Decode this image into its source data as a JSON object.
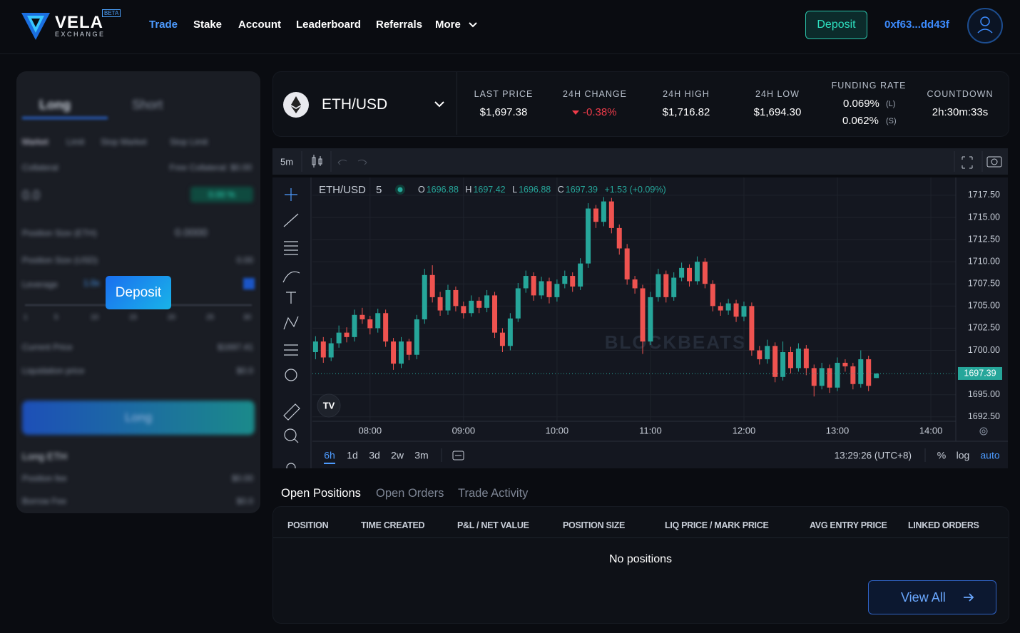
{
  "header": {
    "logo": "VELA",
    "logo_sub": "EXCHANGE",
    "badge": "BETA",
    "nav": [
      "Trade",
      "Stake",
      "Account",
      "Leaderboard",
      "Referrals",
      "More"
    ],
    "deposit": "Deposit",
    "wallet": "0xf63...dd43f"
  },
  "order_panel": {
    "tabs": [
      "Long",
      "Short"
    ],
    "order_types": [
      "Market",
      "Limit",
      "Stop Market",
      "Stop Limit"
    ],
    "collateral": "Collateral",
    "free_collateral": "Free Collateral: $0.00",
    "amount": "0.0",
    "percent": "0.00 %",
    "size_eth": "Position Size (ETH)",
    "size_eth_value": "0.0000",
    "size_usd": "Position Size (USD)",
    "size_usd_value": "0.00",
    "leverage": "Leverage",
    "leverage_value": "1.0x",
    "leverage_marks": [
      "1",
      "5",
      "10",
      "15",
      "20",
      "25",
      "30"
    ],
    "current_price": "Current Price",
    "current_price_value": "$1697.41",
    "liq_price": "Liquidation price",
    "liq_price_value": "$0.0",
    "submit": "Long",
    "summary_title": "Long ETH",
    "position_fee": "Position fee",
    "position_fee_value": "$0.00",
    "borrow_fee": "Borrow Fee",
    "borrow_fee_value": "$0.0"
  },
  "deposit_popup": "Deposit",
  "market": {
    "pair": "ETH/USD",
    "stats": [
      {
        "label": "LAST PRICE",
        "value": "$1,697.38"
      },
      {
        "label": "24H CHANGE",
        "value": "-0.38%"
      },
      {
        "label": "24H HIGH",
        "value": "$1,716.82"
      },
      {
        "label": "24H LOW",
        "value": "$1,694.30"
      }
    ],
    "funding": {
      "label": "FUNDING RATE",
      "long": "0.069%",
      "long_tag": "(L)",
      "short": "0.062%",
      "short_tag": "(S)"
    },
    "countdown": {
      "label": "COUNTDOWN",
      "value": "2h:30m:33s"
    }
  },
  "chart_data": {
    "type": "candlestick",
    "toolbar_interval": "5m",
    "symbol": "ETH/USD",
    "interval": "5",
    "legend_labels": [
      "O",
      "H",
      "L",
      "C"
    ],
    "change": "+1.53 (+0.09%)",
    "watermark": "BLOCKBEATS",
    "up_color": "#26a69a",
    "down_color": "#ef5350",
    "grid": true,
    "x": [
      "07:25",
      "07:30",
      "07:35",
      "07:40",
      "07:45",
      "07:50",
      "07:55",
      "08:00",
      "08:05",
      "08:10",
      "08:15",
      "08:20",
      "08:25",
      "08:30",
      "08:35",
      "08:40",
      "08:45",
      "08:50",
      "08:55",
      "09:00",
      "09:05",
      "09:10",
      "09:15",
      "09:20",
      "09:25",
      "09:30",
      "09:35",
      "09:40",
      "09:45",
      "09:50",
      "09:55",
      "10:00",
      "10:05",
      "10:10",
      "10:15",
      "10:20",
      "10:25",
      "10:30",
      "10:35",
      "10:40",
      "10:45",
      "10:50",
      "10:55",
      "11:00",
      "11:05",
      "11:10",
      "11:15",
      "11:20",
      "11:25",
      "11:30",
      "11:35",
      "11:40",
      "11:45",
      "11:50",
      "11:55",
      "12:00",
      "12:05",
      "12:10",
      "12:15",
      "12:20",
      "12:25",
      "12:30",
      "12:35",
      "12:40",
      "12:45",
      "12:50",
      "12:55",
      "13:00",
      "13:05",
      "13:10",
      "13:15",
      "13:20",
      "13:25"
    ],
    "open": [
      1699.8,
      1701.0,
      1699.2,
      1700.8,
      1702.0,
      1701.5,
      1704.0,
      1703.5,
      1702.5,
      1704.2,
      1701.0,
      1698.5,
      1701.0,
      1699.5,
      1703.5,
      1708.5,
      1706.0,
      1704.5,
      1706.8,
      1705.0,
      1704.2,
      1705.6,
      1704.8,
      1706.2,
      1702.0,
      1700.5,
      1703.6,
      1707.0,
      1708.4,
      1706.2,
      1707.8,
      1706.0,
      1707.5,
      1708.4,
      1707.2,
      1709.8,
      1716.0,
      1714.5,
      1716.8,
      1713.8,
      1711.5,
      1708.0,
      1707.0,
      1701.0,
      1706.0,
      1708.6,
      1706.0,
      1708.2,
      1709.3,
      1707.8,
      1710.0,
      1707.5,
      1705.0,
      1704.5,
      1705.3,
      1703.8,
      1705.0,
      1700.0,
      1699.0,
      1700.5,
      1697.0,
      1699.8,
      1698.0,
      1700.2,
      1698.0,
      1696.0,
      1698.0,
      1695.8,
      1698.6,
      1698.2,
      1696.2,
      1699.0,
      1696.88
    ],
    "high": [
      1701.6,
      1701.5,
      1701.4,
      1702.8,
      1702.6,
      1704.6,
      1704.8,
      1703.9,
      1704.7,
      1704.6,
      1701.4,
      1701.5,
      1701.3,
      1704.0,
      1709.2,
      1709.6,
      1706.6,
      1707.4,
      1707.2,
      1705.5,
      1706.2,
      1706.0,
      1706.8,
      1706.6,
      1702.5,
      1704.2,
      1707.6,
      1709.0,
      1708.8,
      1708.3,
      1708.2,
      1708.0,
      1709.0,
      1708.8,
      1710.4,
      1716.6,
      1716.4,
      1717.3,
      1717.2,
      1714.2,
      1712.0,
      1708.4,
      1707.4,
      1706.6,
      1709.2,
      1709.0,
      1708.8,
      1709.9,
      1709.7,
      1710.6,
      1710.4,
      1707.9,
      1705.4,
      1705.8,
      1705.7,
      1705.5,
      1705.4,
      1700.5,
      1701.2,
      1700.9,
      1701.0,
      1700.4,
      1700.8,
      1700.6,
      1698.4,
      1698.6,
      1698.4,
      1699.2,
      1699.0,
      1698.6,
      1700.0,
      1699.4,
      1697.42
    ],
    "low": [
      1699.0,
      1698.6,
      1698.8,
      1700.3,
      1700.9,
      1701.0,
      1703.0,
      1701.8,
      1702.0,
      1700.4,
      1697.8,
      1698.0,
      1698.9,
      1699.0,
      1703.0,
      1705.4,
      1703.9,
      1704.0,
      1704.4,
      1703.6,
      1703.8,
      1704.2,
      1704.3,
      1701.4,
      1699.8,
      1700.0,
      1703.2,
      1706.5,
      1705.6,
      1705.8,
      1705.3,
      1705.5,
      1707.0,
      1706.6,
      1706.8,
      1709.3,
      1713.8,
      1714.0,
      1713.2,
      1710.8,
      1707.4,
      1706.4,
      1699.6,
      1700.6,
      1705.5,
      1705.4,
      1705.6,
      1707.8,
      1707.2,
      1707.4,
      1707.0,
      1704.4,
      1703.9,
      1704.0,
      1703.2,
      1703.3,
      1699.4,
      1698.4,
      1698.5,
      1696.4,
      1696.6,
      1697.4,
      1697.6,
      1697.2,
      1694.8,
      1695.6,
      1695.2,
      1695.4,
      1697.6,
      1695.6,
      1695.8,
      1695.4,
      1696.88
    ],
    "close": [
      1701.0,
      1699.2,
      1700.8,
      1702.0,
      1701.5,
      1704.0,
      1703.5,
      1702.5,
      1704.2,
      1701.0,
      1698.5,
      1701.0,
      1699.5,
      1703.5,
      1708.5,
      1706.0,
      1704.5,
      1706.8,
      1705.0,
      1704.2,
      1705.6,
      1704.8,
      1706.2,
      1702.0,
      1700.5,
      1703.6,
      1707.0,
      1708.4,
      1706.2,
      1707.8,
      1706.0,
      1707.5,
      1708.4,
      1707.2,
      1709.8,
      1716.0,
      1714.5,
      1716.8,
      1713.8,
      1711.5,
      1708.0,
      1707.0,
      1701.0,
      1706.0,
      1708.6,
      1706.0,
      1708.2,
      1709.3,
      1707.8,
      1710.0,
      1707.5,
      1705.0,
      1704.5,
      1705.3,
      1703.8,
      1705.0,
      1700.0,
      1699.0,
      1700.5,
      1697.0,
      1699.8,
      1698.0,
      1700.2,
      1698.0,
      1696.0,
      1698.0,
      1695.8,
      1698.6,
      1698.2,
      1696.2,
      1699.0,
      1696.0,
      1697.39
    ],
    "xlim": [
      "07:23",
      "14:16"
    ],
    "xticks": [
      "08:00",
      "09:00",
      "10:00",
      "11:00",
      "12:00",
      "13:00",
      "14:00"
    ],
    "ylim": [
      1692.0,
      1719.5
    ],
    "yticks": [
      {
        "value": 1692.5,
        "label": "1692.50"
      },
      {
        "value": 1695,
        "label": "1695.00"
      },
      {
        "value": 1700,
        "label": "1700.00"
      },
      {
        "value": 1702.5,
        "label": "1702.50"
      },
      {
        "value": 1705,
        "label": "1705.00"
      },
      {
        "value": 1707.5,
        "label": "1707.50"
      },
      {
        "value": 1710,
        "label": "1710.00"
      },
      {
        "value": 1712.5,
        "label": "1712.50"
      },
      {
        "value": 1715,
        "label": "1715.00"
      },
      {
        "value": 1717.5,
        "label": "1717.50"
      }
    ],
    "last_price": 1697.39,
    "ranges": [
      "6h",
      "1d",
      "3d",
      "2w",
      "3m"
    ],
    "clock": "13:29:26 (UTC+8)",
    "scale_options": [
      "%",
      "log",
      "auto"
    ]
  },
  "positions": {
    "tabs": [
      "Open Positions",
      "Open Orders",
      "Trade Activity"
    ],
    "columns": [
      "POSITION",
      "TIME CREATED",
      "P&L / NET VALUE",
      "POSITION SIZE",
      "LIQ PRICE / MARK PRICE",
      "AVG ENTRY PRICE",
      "LINKED ORDERS"
    ],
    "empty": "No positions",
    "view_all": "View All"
  }
}
